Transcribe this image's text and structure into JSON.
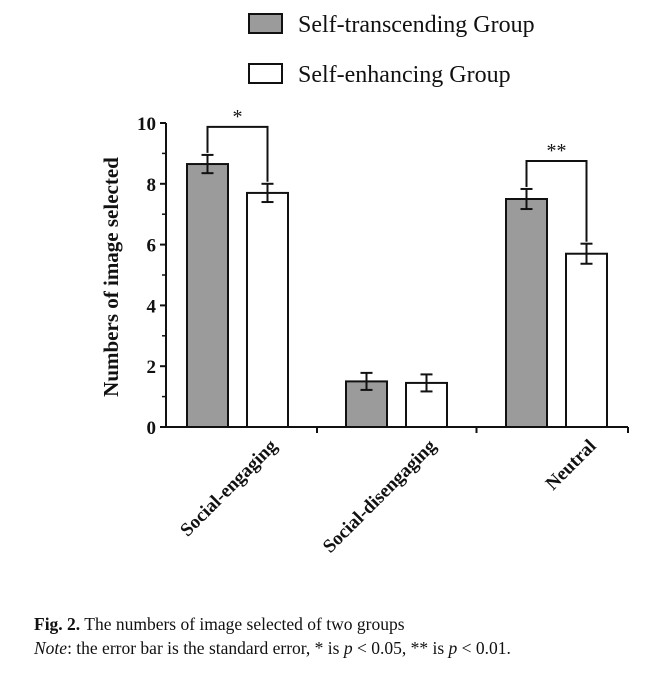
{
  "chart_data": {
    "type": "bar",
    "title": "",
    "xlabel": "",
    "ylabel": "Numbers of image selected",
    "ylim": [
      0,
      10
    ],
    "yticks": [
      "0",
      "2",
      "4",
      "6",
      "8",
      "10"
    ],
    "categories": [
      "Social-engaging",
      "Social-disengaging",
      "Neutral"
    ],
    "series": [
      {
        "name": "Self-transcending Group",
        "color": "#9b9b9b",
        "values": [
          8.65,
          1.5,
          7.5
        ],
        "errors": [
          0.3,
          0.28,
          0.33
        ]
      },
      {
        "name": "Self-enhancing Group",
        "color": "#ffffff",
        "values": [
          7.7,
          1.45,
          5.7
        ],
        "errors": [
          0.3,
          0.28,
          0.33
        ]
      }
    ],
    "significance": [
      {
        "category": "Social-engaging",
        "label": "*"
      },
      {
        "category": "Neutral",
        "label": "**"
      }
    ],
    "legend_position": "top",
    "grid": false
  },
  "caption": {
    "fig_label": "Fig. 2.",
    "fig_text": "The numbers of image selected of two groups",
    "note_label": "Note",
    "note_part1": ": the error bar is the standard error, * is ",
    "p1": "p",
    "note_part2": " < 0.05, ** is ",
    "p2": "p",
    "note_part3": " < 0.01."
  }
}
